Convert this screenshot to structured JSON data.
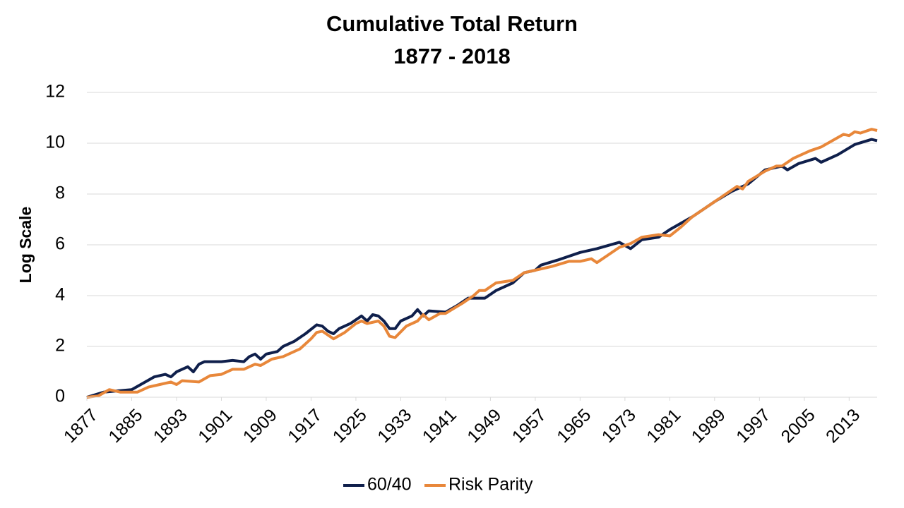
{
  "chart_data": {
    "type": "line",
    "title": "Cumulative Total Return",
    "subtitle": "1877 - 2018",
    "y_label": "Log Scale",
    "xlim": [
      1877,
      2018
    ],
    "xticks": [
      1877,
      1885,
      1893,
      1901,
      1909,
      1917,
      1925,
      1933,
      1941,
      1949,
      1957,
      1965,
      1973,
      1981,
      1989,
      1997,
      2005,
      2013
    ],
    "ylim": [
      0,
      12
    ],
    "yticks": [
      0,
      2,
      4,
      6,
      8,
      10,
      12
    ],
    "grid": true,
    "legend": "bottom",
    "series": [
      {
        "name": "60/40",
        "color": "#0f1f4b",
        "x": [
          1877,
          1880,
          1885,
          1889,
          1891,
          1892,
          1893,
          1895,
          1896,
          1897,
          1898,
          1901,
          1903,
          1905,
          1906,
          1907,
          1908,
          1909,
          1911,
          1912,
          1914,
          1916,
          1918,
          1919,
          1920,
          1921,
          1922,
          1924,
          1926,
          1927,
          1928,
          1929,
          1930,
          1931,
          1932,
          1933,
          1935,
          1936,
          1937,
          1938,
          1941,
          1943,
          1945,
          1948,
          1950,
          1953,
          1955,
          1957,
          1958,
          1961,
          1965,
          1968,
          1972,
          1974,
          1976,
          1979,
          1981,
          1985,
          1987,
          1989,
          1992,
          1995,
          1998,
          2001,
          2002,
          2004,
          2007,
          2008,
          2011,
          2014,
          2017,
          2018
        ],
        "values": [
          0,
          0.2,
          0.3,
          0.8,
          0.9,
          0.8,
          1.0,
          1.2,
          1.0,
          1.3,
          1.4,
          1.4,
          1.45,
          1.4,
          1.6,
          1.7,
          1.5,
          1.7,
          1.8,
          2.0,
          2.2,
          2.5,
          2.85,
          2.8,
          2.6,
          2.5,
          2.7,
          2.9,
          3.2,
          3.0,
          3.25,
          3.2,
          3.0,
          2.7,
          2.7,
          3.0,
          3.2,
          3.45,
          3.2,
          3.4,
          3.35,
          3.6,
          3.9,
          3.9,
          4.2,
          4.5,
          4.9,
          5.0,
          5.2,
          5.4,
          5.7,
          5.85,
          6.1,
          5.85,
          6.2,
          6.3,
          6.6,
          7.1,
          7.4,
          7.7,
          8.1,
          8.4,
          8.95,
          9.1,
          8.95,
          9.2,
          9.4,
          9.25,
          9.55,
          9.95,
          10.15,
          10.1
        ]
      },
      {
        "name": "Risk Parity",
        "color": "#e8873a",
        "x": [
          1877,
          1879,
          1881,
          1883,
          1886,
          1888,
          1890,
          1892,
          1893,
          1894,
          1897,
          1899,
          1901,
          1903,
          1905,
          1907,
          1908,
          1910,
          1912,
          1915,
          1917,
          1918,
          1919,
          1921,
          1923,
          1925,
          1926,
          1927,
          1929,
          1930,
          1931,
          1932,
          1934,
          1936,
          1937,
          1938,
          1940,
          1941,
          1944,
          1946,
          1947,
          1948,
          1950,
          1953,
          1955,
          1957,
          1960,
          1963,
          1965,
          1967,
          1968,
          1970,
          1972,
          1974,
          1976,
          1979,
          1981,
          1983,
          1985,
          1987,
          1989,
          1991,
          1993,
          1994,
          1995,
          1998,
          1999,
          2000,
          2001,
          2003,
          2006,
          2008,
          2010,
          2012,
          2013,
          2014,
          2015,
          2017,
          2018
        ],
        "values": [
          0,
          0.05,
          0.3,
          0.2,
          0.2,
          0.4,
          0.5,
          0.6,
          0.5,
          0.65,
          0.6,
          0.85,
          0.9,
          1.1,
          1.1,
          1.3,
          1.25,
          1.5,
          1.6,
          1.9,
          2.3,
          2.55,
          2.6,
          2.3,
          2.55,
          2.9,
          3.0,
          2.9,
          3.0,
          2.8,
          2.4,
          2.35,
          2.8,
          3.0,
          3.25,
          3.05,
          3.3,
          3.3,
          3.7,
          4.0,
          4.2,
          4.2,
          4.5,
          4.6,
          4.9,
          5.0,
          5.15,
          5.35,
          5.35,
          5.45,
          5.3,
          5.6,
          5.9,
          6.05,
          6.3,
          6.4,
          6.35,
          6.7,
          7.1,
          7.4,
          7.7,
          8.0,
          8.3,
          8.2,
          8.5,
          8.9,
          9.0,
          9.1,
          9.1,
          9.4,
          9.7,
          9.85,
          10.1,
          10.35,
          10.3,
          10.45,
          10.4,
          10.55,
          10.5
        ]
      }
    ]
  }
}
